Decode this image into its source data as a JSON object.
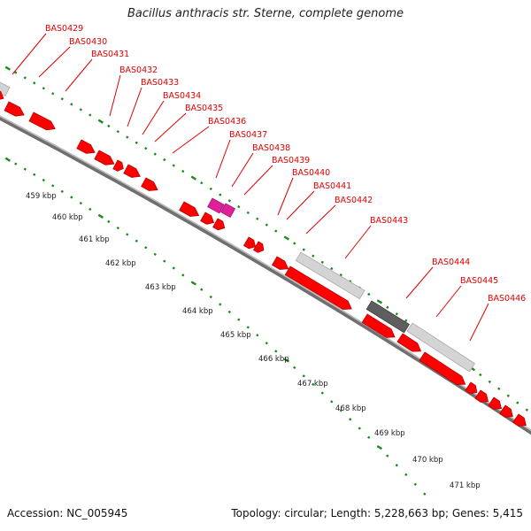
{
  "title": "Bacillus anthracis str. Sterne, complete genome",
  "footer": {
    "accession": "Accession: NC_005945",
    "topology": "Topology: circular; Length: 5,228,663 bp; Genes: 5,415"
  },
  "colors": {
    "gene": "#ff0000",
    "gene_dark": "#b80000",
    "rna": "#e0209a",
    "pseudo": "#d4d4d4",
    "pseudo_dark": "#5e5e5e",
    "backbone": "#8c8c8c",
    "tick": "#1a8a1a",
    "label": "#e00000"
  },
  "kbp_ticks": [
    "459 kbp",
    "460 kbp",
    "461 kbp",
    "462 kbp",
    "463 kbp",
    "464 kbp",
    "465 kbp",
    "466 kbp",
    "467 kbp",
    "468 kbp",
    "469 kbp",
    "470 kbp",
    "471 kbp"
  ],
  "gene_labels": [
    "BAS0429",
    "BAS0430",
    "BAS0431",
    "BAS0432",
    "BAS0433",
    "BAS0434",
    "BAS0435",
    "BAS0436",
    "BAS0437",
    "BAS0438",
    "BAS0439",
    "BAS0440",
    "BAS0441",
    "BAS0442",
    "BAS0443",
    "BAS0444",
    "BAS0445",
    "BAS0446"
  ]
}
